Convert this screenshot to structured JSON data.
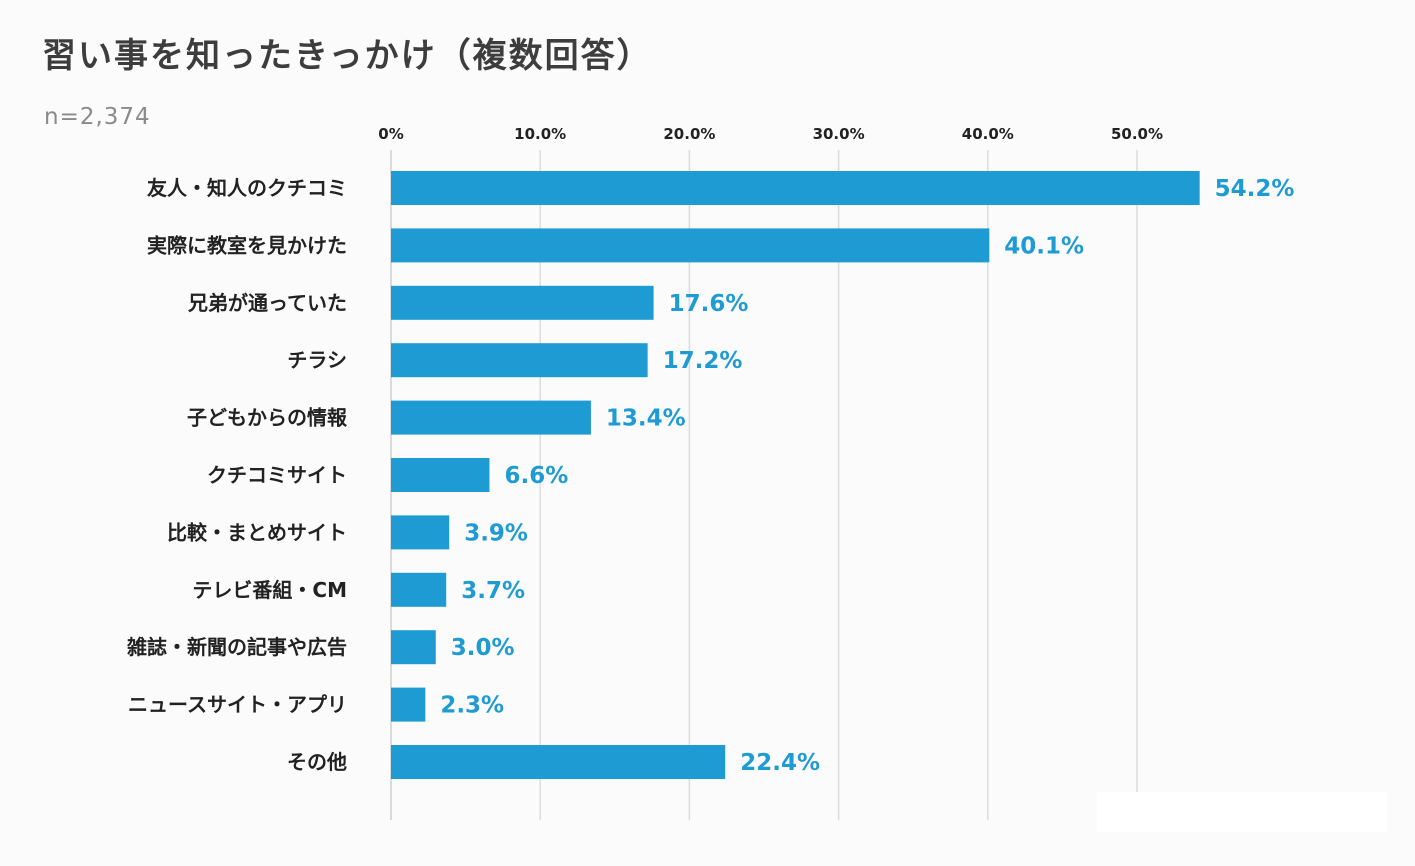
{
  "header": {
    "title": "習い事を知ったきっかけ（複数回答）",
    "sample_size": "n=2,374"
  },
  "colors": {
    "bar": "#1e9bd3",
    "value_label": "#1e9bd3",
    "category_label": "#222222",
    "tick_label": "#222222",
    "gridline": "#dcdcdc",
    "axis": "#cfcfcf"
  },
  "chart_data": {
    "type": "bar",
    "orientation": "horizontal",
    "title": "習い事を知ったきっかけ（複数回答）",
    "subtitle": "n=2,374",
    "categories": [
      "友人・知人のクチコミ",
      "実際に教室を見かけた",
      "兄弟が通っていた",
      "チラシ",
      "子どもからの情報",
      "クチコミサイト",
      "比較・まとめサイト",
      "テレビ番組・CM",
      "雑誌・新聞の記事や広告",
      "ニュースサイト・アプリ",
      "その他"
    ],
    "values": [
      54.2,
      40.1,
      17.6,
      17.2,
      13.4,
      6.6,
      3.9,
      3.7,
      3.0,
      2.3,
      22.4
    ],
    "value_labels": [
      "54.2%",
      "40.1%",
      "17.6%",
      "17.2%",
      "13.4%",
      "6.6%",
      "3.9%",
      "3.7%",
      "3.0%",
      "2.3%",
      "22.4%"
    ],
    "xticks": [
      0,
      10,
      20,
      30,
      40,
      50
    ],
    "xtick_labels": [
      "0%",
      "10.0%",
      "20.0%",
      "30.0%",
      "40.0%",
      "50.0%"
    ],
    "xlim": [
      0,
      60
    ],
    "xlabel": "",
    "ylabel": "",
    "grid": true,
    "tick_position": "top",
    "legend": "none"
  }
}
